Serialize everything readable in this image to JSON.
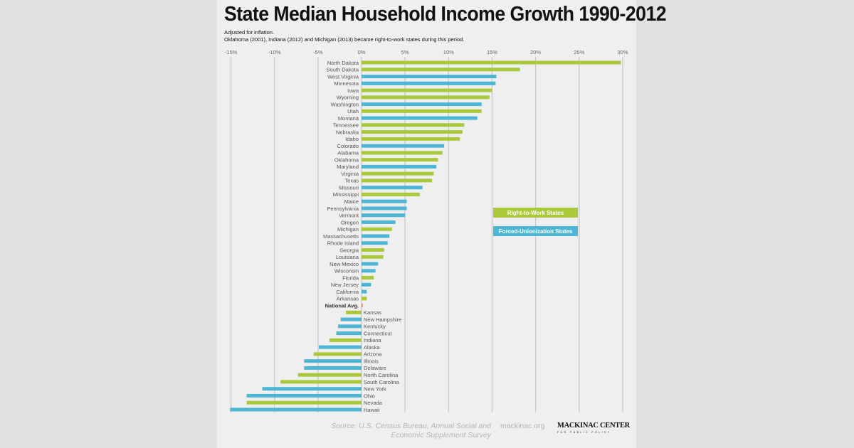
{
  "chart_data": {
    "type": "bar",
    "orientation": "horizontal",
    "title": "State Median Household Income Growth 1990-2012",
    "subtitle": [
      "Adjusted for inflation.",
      "Oklahoma (2001), Indiana (2012) and Michigan (2013) became right-to-work states during this period."
    ],
    "xlim": [
      -15,
      30
    ],
    "xticks": [
      "-15%",
      "-10%",
      "-5%",
      "0%",
      "5%",
      "10%",
      "15%",
      "20%",
      "25%",
      "30%"
    ],
    "xtick_values": [
      -15,
      -10,
      -5,
      0,
      5,
      10,
      15,
      20,
      25,
      30
    ],
    "grid": true,
    "legend": {
      "placement": "right-center",
      "items": [
        {
          "label": "Right-to-Work States",
          "color": "#a9c93b",
          "group": "rtw"
        },
        {
          "label": "Forced-Unionization States",
          "color": "#4db6d4",
          "group": "fu"
        }
      ]
    },
    "colors": {
      "rtw": "#a9c93b",
      "fu": "#4db6d4",
      "avg": "#e07a4a"
    },
    "categories": [
      "North Dakota",
      "South Dakota",
      "West Virginia",
      "Minnesota",
      "Iowa",
      "Wyoming",
      "Washington",
      "Utah",
      "Montana",
      "Tennessee",
      "Nebraska",
      "Idaho",
      "Colorado",
      "Alabama",
      "Oklahoma",
      "Maryland",
      "Virginia",
      "Texas",
      "Missouri",
      "Mississippi",
      "Maine",
      "Pennsylvania",
      "Vermont",
      "Oregon",
      "Michigan",
      "Massachusetts",
      "Rhode Island",
      "Georgia",
      "Louisiana",
      "New Mexico",
      "Wisconsin",
      "Florida",
      "New Jersey",
      "California",
      "Arkansas",
      "National Avg.",
      "Kansas",
      "New Hampshire",
      "Kentucky",
      "Connecticut",
      "Indiana",
      "Alaska",
      "Arizona",
      "Illinois",
      "Delaware",
      "North Carolina",
      "South Carolina",
      "New York",
      "Ohio",
      "Nevada",
      "Hawaii"
    ],
    "values": [
      29.8,
      18.2,
      15.5,
      15.4,
      15.0,
      14.7,
      13.8,
      13.8,
      13.3,
      11.8,
      11.6,
      11.3,
      9.5,
      9.3,
      8.8,
      8.6,
      8.3,
      8.1,
      7.0,
      6.7,
      5.2,
      5.2,
      5.0,
      3.9,
      3.5,
      3.2,
      3.0,
      2.6,
      2.5,
      1.9,
      1.6,
      1.4,
      1.1,
      0.6,
      0.6,
      0.1,
      -1.8,
      -2.4,
      -2.7,
      -2.9,
      -3.7,
      -4.9,
      -5.5,
      -6.6,
      -6.6,
      -7.3,
      -9.3,
      -11.4,
      -13.2,
      -13.2,
      -15.1
    ],
    "groups": [
      "rtw",
      "rtw",
      "fu",
      "fu",
      "rtw",
      "rtw",
      "fu",
      "rtw",
      "fu",
      "rtw",
      "rtw",
      "rtw",
      "fu",
      "rtw",
      "rtw",
      "fu",
      "rtw",
      "rtw",
      "fu",
      "rtw",
      "fu",
      "fu",
      "fu",
      "fu",
      "rtw",
      "fu",
      "fu",
      "rtw",
      "rtw",
      "fu",
      "fu",
      "rtw",
      "fu",
      "fu",
      "rtw",
      "avg",
      "rtw",
      "fu",
      "fu",
      "fu",
      "rtw",
      "fu",
      "rtw",
      "fu",
      "fu",
      "rtw",
      "rtw",
      "fu",
      "fu",
      "rtw",
      "fu"
    ]
  },
  "footer": {
    "source_line1": "Source: U.S. Census Bureau, Annual Social and",
    "source_line2": "Economic Supplement Survey",
    "site": "mackinac.org",
    "logo_text": "MACKINAC CENTER",
    "logo_subtext": "FOR PUBLIC POLICY"
  }
}
